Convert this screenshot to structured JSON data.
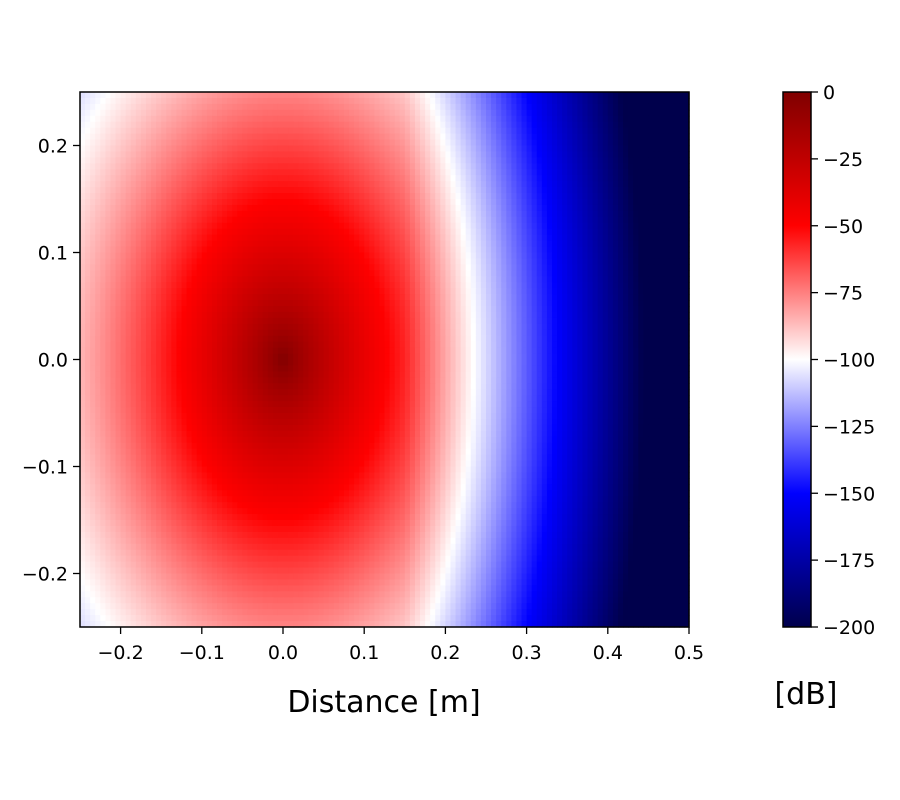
{
  "chart_data": {
    "type": "heatmap",
    "title": "",
    "xlabel": "Distance [m]",
    "ylabel": "",
    "xlim": [
      -0.25,
      0.5
    ],
    "ylim": [
      -0.25,
      0.25
    ],
    "x_ticks": [
      "−0.2",
      "−0.1",
      "0.0",
      "0.1",
      "0.2",
      "0.3",
      "0.4",
      "0.5"
    ],
    "x_tick_values": [
      -0.2,
      -0.1,
      0.0,
      0.1,
      0.2,
      0.3,
      0.4,
      0.5
    ],
    "y_ticks": [
      "0.2",
      "0.1",
      "0.0",
      "−0.1",
      "−0.2"
    ],
    "y_tick_values": [
      0.2,
      0.1,
      0.0,
      -0.1,
      -0.2
    ],
    "colorbar": {
      "label": "[dB]",
      "range": [
        -200,
        0
      ],
      "ticks": [
        "0",
        "−25",
        "−50",
        "−75",
        "−100",
        "−125",
        "−150",
        "−175",
        "−200"
      ],
      "tick_values": [
        0,
        -25,
        -50,
        -75,
        -100,
        -125,
        -150,
        -175,
        -200
      ],
      "colormap": "seismic",
      "colors": [
        "#00004c",
        "#0000ff",
        "#ffffff",
        "#ff0000",
        "#800000"
      ]
    },
    "peak": {
      "x": 0.0,
      "y": 0.0,
      "value_db": 0
    },
    "grid": false
  }
}
